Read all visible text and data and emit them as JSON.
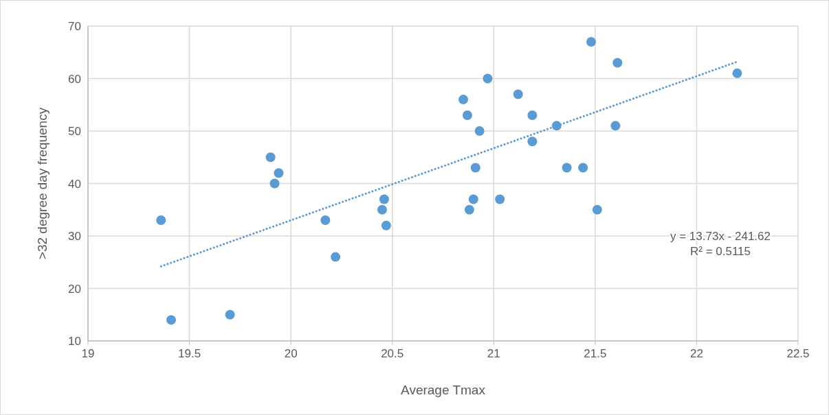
{
  "chart_data": {
    "type": "scatter",
    "xlabel": "Average Tmax",
    "ylabel": ">32 degree day frequency",
    "xlim": [
      19,
      22.5
    ],
    "xticks": [
      19,
      19.5,
      20,
      20.5,
      21,
      21.5,
      22,
      22.5
    ],
    "ylim": [
      10,
      70
    ],
    "yticks": [
      10,
      20,
      30,
      40,
      50,
      60,
      70
    ],
    "grid": true,
    "marker": "circle",
    "series": [
      {
        "color": "#5b9bd5",
        "x": [
          19.36,
          19.41,
          19.7,
          19.9,
          19.92,
          19.94,
          20.17,
          20.22,
          20.45,
          20.46,
          20.47,
          20.85,
          20.87,
          20.88,
          20.9,
          20.91,
          20.93,
          20.97,
          21.03,
          21.12,
          21.19,
          21.19,
          21.31,
          21.36,
          21.44,
          21.48,
          21.51,
          21.6,
          21.61,
          22.2
        ],
        "values": [
          33,
          14,
          15,
          45,
          40,
          42,
          33,
          26,
          35,
          37,
          32,
          56,
          53,
          35,
          37,
          43,
          50,
          60,
          37,
          57,
          53,
          48,
          51,
          43,
          43,
          67,
          35,
          51,
          63,
          61
        ]
      },
      {
        "type": "line",
        "color": "#5b9bd5",
        "line_style": "dotted",
        "marker": "none",
        "x": [
          19.36,
          22.2
        ],
        "values": [
          24.2,
          63.2
        ]
      }
    ],
    "annotations": [
      "y = 13.73x - 241.62",
      "R² = 0.5115"
    ]
  }
}
